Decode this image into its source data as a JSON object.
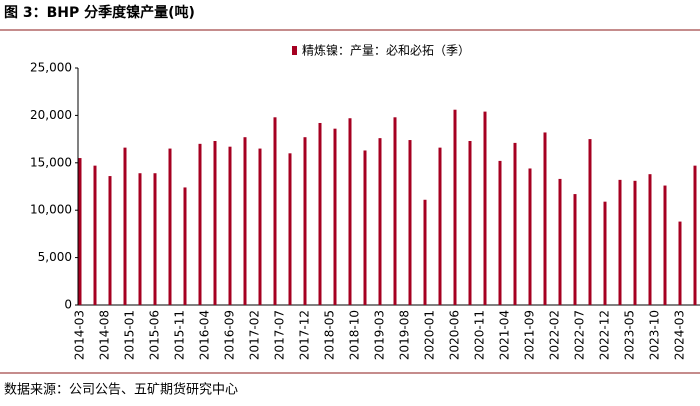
{
  "chart_data": {
    "type": "bar",
    "title": "图 3：BHP 分季度镍产量(吨)",
    "source": "数据来源：公司公告、五矿期货研究中心",
    "color": "#a50021",
    "ylim": [
      0,
      25000
    ],
    "yticks": [
      0,
      {
        "value": 5000,
        "label": "5,000"
      },
      {
        "value": 10000,
        "label": "10,000"
      },
      {
        "value": 15000,
        "label": "15,000"
      },
      {
        "value": 20000,
        "label": "20,000"
      },
      {
        "value": 25000,
        "label": "25,000"
      }
    ],
    "categories": [
      "2014-03",
      null,
      null,
      null,
      null,
      "2014-08",
      null,
      null,
      null,
      null,
      "2015-01",
      null,
      null,
      null,
      null,
      "2015-06",
      null,
      null,
      null,
      null,
      "2015-11",
      null,
      null,
      null,
      null,
      "2016-04",
      null,
      null,
      null,
      null,
      "2016-09",
      null,
      null,
      null,
      null,
      "2017-02",
      null,
      null,
      null,
      null,
      "2017-07",
      null,
      null,
      null,
      null,
      "2017-12",
      null,
      null,
      null,
      null,
      "2018-05",
      null,
      null,
      null,
      null,
      "2018-10",
      null,
      null,
      null,
      null,
      "2019-03",
      null,
      null,
      null,
      null,
      "2019-08",
      null,
      null,
      null,
      null,
      "2020-01",
      null,
      null,
      null,
      null,
      "2020-06",
      null,
      null,
      null,
      null,
      "2020-11",
      null,
      null,
      null,
      null,
      "2021-04",
      null,
      null,
      null,
      null,
      "2021-09",
      null,
      null,
      null,
      null,
      "2022-02",
      null,
      null,
      null,
      null,
      "2022-07",
      null,
      null,
      null,
      null,
      "2022-12",
      null,
      null,
      null,
      null,
      "2023-05",
      null,
      null,
      null,
      null,
      "2023-10",
      null,
      null,
      null,
      null,
      "2024-03",
      null,
      null,
      null
    ],
    "series": [
      {
        "name": "精炼镍：产量：必和必拓（季）",
        "color": "#a50021",
        "values": [
          15500,
          null,
          null,
          14700,
          null,
          null,
          13600,
          null,
          null,
          16600,
          null,
          null,
          13900,
          null,
          null,
          13900,
          null,
          null,
          16500,
          null,
          null,
          12400,
          null,
          null,
          17000,
          null,
          null,
          17300,
          null,
          null,
          16700,
          null,
          null,
          17700,
          null,
          null,
          16500,
          null,
          null,
          19800,
          null,
          null,
          16000,
          null,
          null,
          17700,
          null,
          null,
          19200,
          null,
          null,
          18600,
          null,
          null,
          19700,
          null,
          null,
          16300,
          null,
          null,
          17600,
          null,
          null,
          19800,
          null,
          null,
          17400,
          null,
          null,
          11100,
          null,
          null,
          16600,
          null,
          null,
          20600,
          null,
          null,
          17300,
          null,
          null,
          20400,
          null,
          null,
          15200,
          null,
          null,
          17100,
          null,
          null,
          14400,
          null,
          null,
          18200,
          null,
          null,
          13300,
          null,
          null,
          11700,
          null,
          null,
          17500,
          null,
          null,
          10900,
          null,
          null,
          13200,
          null,
          null,
          13100,
          null,
          null,
          13800,
          null,
          null,
          12600,
          null,
          null,
          8800,
          null,
          null,
          14700
        ]
      }
    ]
  }
}
